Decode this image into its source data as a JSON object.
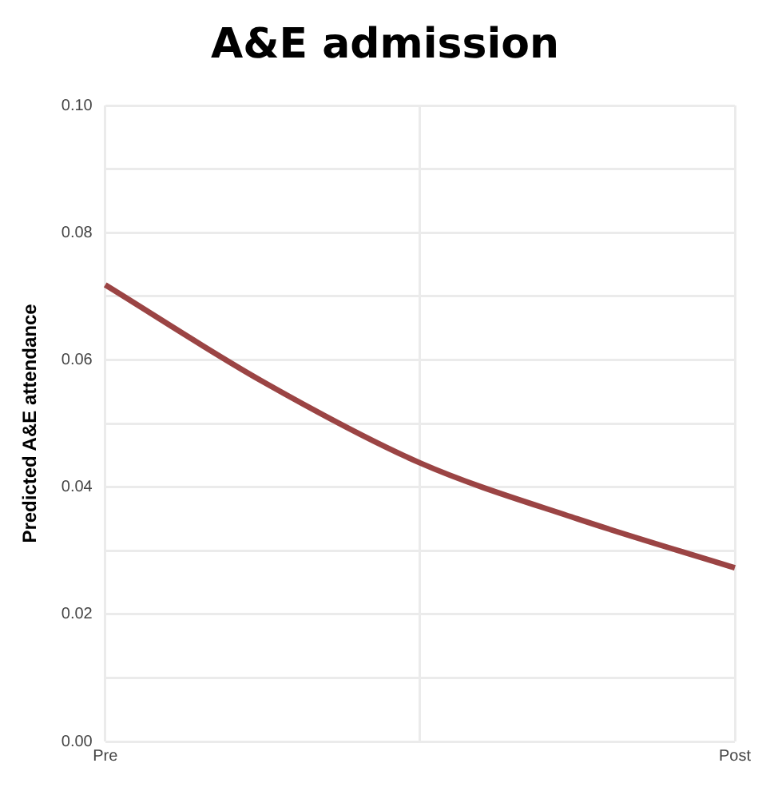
{
  "chart_data": {
    "type": "line",
    "title": "A&E admission",
    "ylabel": "Predicted A&E attendance",
    "categories": [
      "Pre",
      null,
      null,
      null,
      "Post"
    ],
    "series": [
      {
        "color": "#9b4444",
        "values": [
          0.0718,
          0.0566,
          0.0438,
          0.035,
          0.0273
        ]
      }
    ],
    "ylim": [
      0,
      0.1
    ],
    "yticks": [
      {
        "value": 0,
        "label": "0.00"
      },
      {
        "value": 0.01,
        "label": null
      },
      {
        "value": 0.02,
        "label": "0.02"
      },
      {
        "value": 0.03,
        "label": null
      },
      {
        "value": 0.04,
        "label": "0.04"
      },
      {
        "value": 0.05,
        "label": null
      },
      {
        "value": 0.06,
        "label": "0.06"
      },
      {
        "value": 0.07,
        "label": null
      },
      {
        "value": 0.08,
        "label": "0.08"
      },
      {
        "value": 0.09,
        "label": null
      },
      {
        "value": 0.1,
        "label": "0.10"
      }
    ],
    "grid": true,
    "legend": false,
    "marker": "none",
    "line_style": "solid"
  }
}
